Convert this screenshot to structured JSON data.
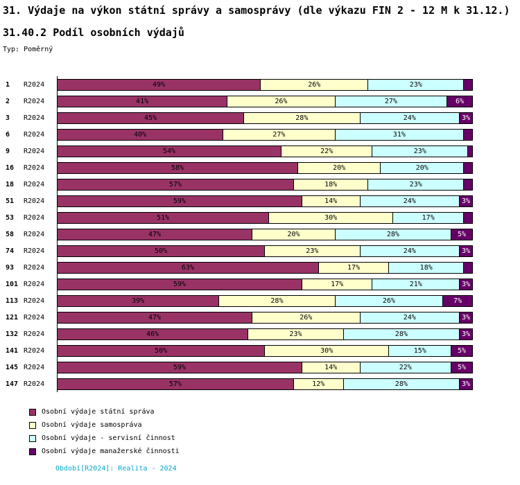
{
  "header": {
    "title": "31. Výdaje na výkon státní správy a samosprávy (dle výkazu FIN 2 - 12 M k 31.12.)",
    "subtitle": "31.40.2 Podíl osobních výdajů",
    "type_label": "Typ: Poměrný"
  },
  "chart_data": {
    "type": "bar",
    "orientation": "horizontal",
    "stacked": true,
    "xlim": [
      0,
      100
    ],
    "value_suffix": "%",
    "label_min_pct": 3,
    "period_label": "R2024",
    "categories": [
      "1",
      "2",
      "3",
      "6",
      "9",
      "16",
      "18",
      "51",
      "53",
      "58",
      "74",
      "93",
      "101",
      "113",
      "121",
      "132",
      "141",
      "145",
      "147"
    ],
    "series": [
      {
        "name": "Osobní výdaje státní správa",
        "color": "#993366",
        "dark": false,
        "values": [
          49,
          41,
          45,
          40,
          54,
          58,
          57,
          59,
          51,
          47,
          50,
          63,
          59,
          39,
          47,
          46,
          50,
          59,
          57
        ]
      },
      {
        "name": "Osobní výdaje samospráva",
        "color": "#FFFFCC",
        "dark": false,
        "values": [
          26,
          26,
          28,
          27,
          22,
          20,
          18,
          14,
          30,
          20,
          23,
          17,
          17,
          28,
          26,
          23,
          30,
          14,
          12
        ]
      },
      {
        "name": "Osobní výdaje - servisní činnost",
        "color": "#CCFFFF",
        "dark": false,
        "values": [
          23,
          27,
          24,
          31,
          23,
          20,
          23,
          24,
          17,
          28,
          24,
          18,
          21,
          26,
          24,
          28,
          15,
          22,
          28
        ]
      },
      {
        "name": "Osobní výdaje manažerské činnosti",
        "color": "#660066",
        "dark": true,
        "values": [
          2,
          6,
          3,
          2,
          1,
          2,
          2,
          3,
          2,
          5,
          3,
          2,
          3,
          7,
          3,
          3,
          5,
          5,
          3
        ]
      }
    ],
    "legend_position": "bottom"
  },
  "legend": {
    "items": [
      {
        "label": "Osobní výdaje státní správa",
        "color": "#993366"
      },
      {
        "label": "Osobní výdaje samospráva",
        "color": "#FFFFCC"
      },
      {
        "label": "Osobní výdaje - servisní činnost",
        "color": "#CCFFFF"
      },
      {
        "label": "Osobní výdaje manažerské činnosti",
        "color": "#660066"
      }
    ]
  },
  "footer": {
    "text": "Období[R2024]: Realita - 2024",
    "color": "#00AACC"
  }
}
